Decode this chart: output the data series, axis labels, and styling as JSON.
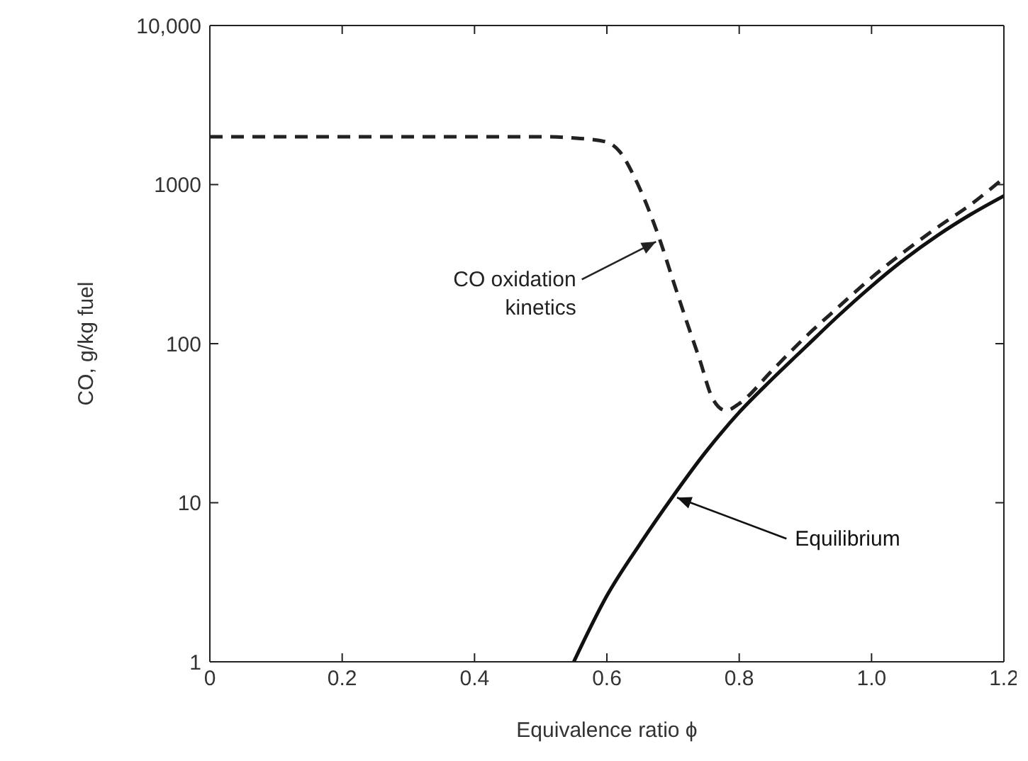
{
  "chart_data": {
    "type": "line",
    "xlabel": "Equivalence ratio ϕ",
    "ylabel": "CO, g/kg fuel",
    "log": "y",
    "marker": "none",
    "xlim": [
      0,
      1.2
    ],
    "xticks": [
      0,
      0.2,
      0.4,
      0.6,
      0.8,
      {
        "value": 1,
        "label": "1.0"
      },
      1.2
    ],
    "ylim": [
      1,
      10000
    ],
    "yticks": [
      1,
      10,
      100,
      1000,
      {
        "value": 10000,
        "label": "10,000"
      }
    ],
    "series": [
      {
        "name": "CO oxidation kinetics",
        "color": "#222222",
        "line_style": "dashed",
        "x": [
          0,
          0.1,
          0.2,
          0.3,
          0.4,
          0.5,
          0.56,
          0.6,
          0.62,
          0.64,
          0.66,
          0.68,
          0.7,
          0.72,
          0.74,
          0.76,
          0.78,
          0.8,
          0.85,
          0.9,
          0.95,
          1.0,
          1.05,
          1.1,
          1.15,
          1.2
        ],
        "values": [
          2000,
          2000,
          2000,
          2000,
          2000,
          2000,
          1950,
          1850,
          1600,
          1150,
          750,
          450,
          250,
          140,
          80,
          45,
          38,
          42,
          68,
          110,
          170,
          260,
          380,
          540,
          750,
          1100
        ]
      },
      {
        "name": "Equilibrium",
        "color": "#111111",
        "line_style": "solid",
        "x": [
          0.55,
          0.6,
          0.65,
          0.7,
          0.75,
          0.8,
          0.85,
          0.9,
          0.95,
          1.0,
          1.05,
          1.1,
          1.15,
          1.2
        ],
        "values": [
          1,
          2.6,
          5.5,
          11,
          21,
          37,
          60,
          95,
          150,
          230,
          340,
          480,
          650,
          850
        ]
      }
    ]
  }
}
